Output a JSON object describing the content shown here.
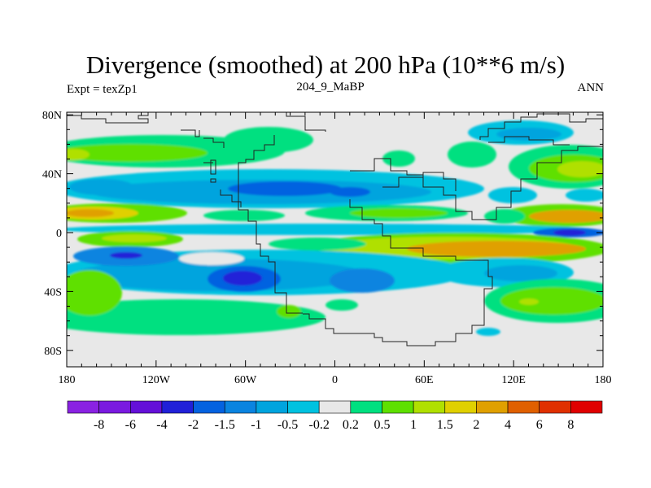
{
  "title": "Divergence (smoothed) at 200 hPa (10**6 m/s)",
  "left_string": "Expt = texZp1",
  "center_string": "204_9_MaBP",
  "right_string": "ANN",
  "chart_data": {
    "type": "heatmap",
    "description_type": "filled contour map",
    "title": "Divergence (smoothed) at 200 hPa (10**6 m/s)",
    "xlim": [
      -180,
      180
    ],
    "ylim": [
      -90,
      90
    ],
    "x_ticks": [
      "180",
      "120W",
      "60W",
      "0",
      "60E",
      "120E",
      "180"
    ],
    "y_ticks": [
      "80N",
      "40N",
      "0",
      "40S",
      "80S"
    ],
    "x_tick_values": [
      -180,
      -120,
      -60,
      0,
      60,
      120,
      180
    ],
    "y_tick_values": [
      80,
      40,
      0,
      -40,
      -80
    ],
    "colorbar": {
      "labels": [
        "-8",
        "-6",
        "-4",
        "-2",
        "-1.5",
        "-1",
        "-0.5",
        "-0.2",
        "0.2",
        "0.5",
        "1",
        "1.5",
        "2",
        "4",
        "6",
        "8"
      ],
      "colors": [
        "#8a22e2",
        "#7a1ae0",
        "#6410d8",
        "#2020d8",
        "#0462e0",
        "#0a84e0",
        "#00a4de",
        "#00c2e0",
        "#e8e8e8",
        "#00e080",
        "#5ee000",
        "#b0e000",
        "#e0d000",
        "#e0a000",
        "#e06000",
        "#e03000",
        "#e00000"
      ]
    }
  }
}
